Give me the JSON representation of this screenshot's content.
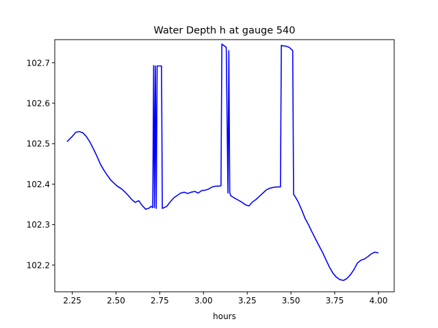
{
  "chart_data": {
    "type": "line",
    "title": "Water Depth h at gauge 540",
    "xlabel": "hours",
    "ylabel": "",
    "xlim": [
      2.15,
      4.09
    ],
    "ylim": [
      102.134,
      102.757
    ],
    "xticks": [
      2.25,
      2.5,
      2.75,
      3.0,
      3.25,
      3.5,
      3.75,
      4.0
    ],
    "xtick_labels": [
      "2.25",
      "2.50",
      "2.75",
      "3.00",
      "3.25",
      "3.50",
      "3.75",
      "4.00"
    ],
    "yticks": [
      102.2,
      102.3,
      102.4,
      102.5,
      102.6,
      102.7
    ],
    "ytick_labels": [
      "102.2",
      "102.3",
      "102.4",
      "102.5",
      "102.6",
      "102.7"
    ],
    "grid": false,
    "legend": "none",
    "series": [
      {
        "color": "#0000ff",
        "x": [
          2.22,
          2.25,
          2.27,
          2.29,
          2.31,
          2.33,
          2.35,
          2.37,
          2.39,
          2.41,
          2.43,
          2.45,
          2.47,
          2.49,
          2.51,
          2.53,
          2.55,
          2.57,
          2.59,
          2.61,
          2.63,
          2.65,
          2.67,
          2.69,
          2.7,
          2.71,
          2.715,
          2.72,
          2.725,
          2.73,
          2.735,
          2.74,
          2.76,
          2.765,
          2.77,
          2.79,
          2.81,
          2.83,
          2.85,
          2.87,
          2.89,
          2.91,
          2.93,
          2.95,
          2.97,
          2.99,
          3.01,
          3.03,
          3.05,
          3.07,
          3.09,
          3.1,
          3.105,
          3.13,
          3.14,
          3.145,
          3.15,
          3.155,
          3.16,
          3.18,
          3.2,
          3.22,
          3.24,
          3.26,
          3.28,
          3.3,
          3.32,
          3.34,
          3.36,
          3.38,
          3.4,
          3.42,
          3.44,
          3.445,
          3.45,
          3.47,
          3.49,
          3.51,
          3.515,
          3.52,
          3.54,
          3.56,
          3.58,
          3.6,
          3.62,
          3.64,
          3.66,
          3.68,
          3.7,
          3.72,
          3.74,
          3.76,
          3.78,
          3.8,
          3.82,
          3.84,
          3.86,
          3.88,
          3.9,
          3.92,
          3.94,
          3.96,
          3.98,
          4.0
        ],
        "y": [
          102.505,
          102.518,
          102.528,
          102.53,
          102.527,
          102.518,
          102.505,
          102.488,
          102.47,
          102.45,
          102.435,
          102.422,
          102.41,
          102.402,
          102.394,
          102.389,
          102.381,
          102.372,
          102.362,
          102.355,
          102.359,
          102.347,
          102.338,
          102.341,
          102.345,
          102.342,
          102.693,
          102.342,
          102.692,
          102.34,
          102.692,
          102.692,
          102.692,
          102.34,
          102.341,
          102.345,
          102.356,
          102.366,
          102.372,
          102.378,
          102.38,
          102.377,
          102.38,
          102.382,
          102.378,
          102.384,
          102.385,
          102.388,
          102.393,
          102.395,
          102.395,
          102.396,
          102.746,
          102.738,
          102.378,
          102.73,
          102.38,
          102.372,
          102.37,
          102.365,
          102.36,
          102.355,
          102.349,
          102.346,
          102.356,
          102.362,
          102.37,
          102.378,
          102.386,
          102.39,
          102.392,
          102.393,
          102.393,
          102.743,
          102.742,
          102.741,
          102.738,
          102.73,
          102.374,
          102.372,
          102.357,
          102.338,
          102.316,
          102.3,
          102.282,
          102.265,
          102.248,
          102.232,
          102.213,
          102.195,
          102.18,
          102.17,
          102.164,
          102.162,
          102.167,
          102.176,
          102.189,
          102.205,
          102.212,
          102.215,
          102.221,
          102.228,
          102.232,
          102.23
        ]
      }
    ]
  }
}
